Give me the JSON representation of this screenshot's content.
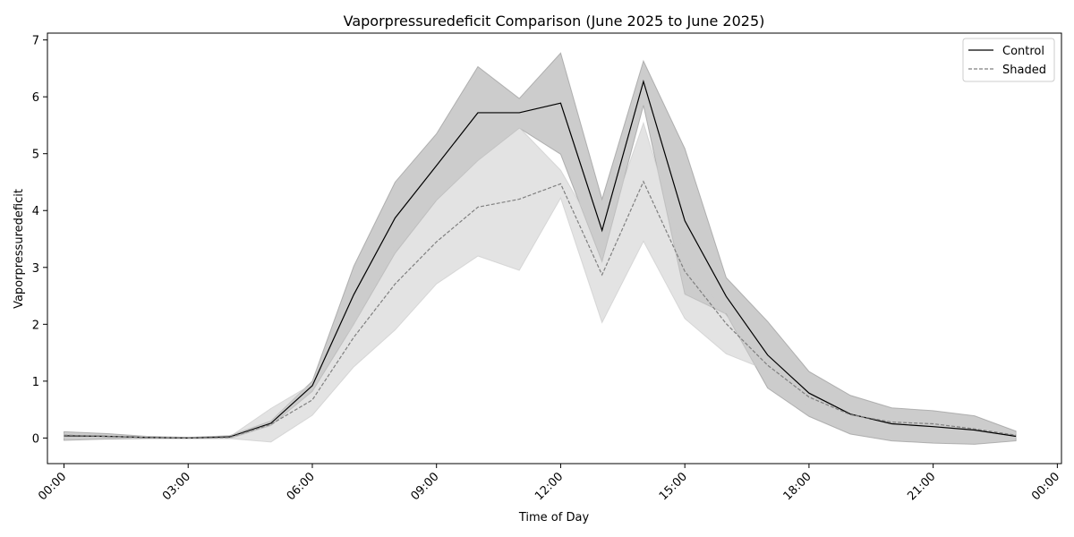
{
  "chart_data": {
    "type": "line",
    "title": "Vaporpressuredeficit Comparison (June 2025 to June 2025)",
    "xlabel": "Time of Day",
    "ylabel": "Vaporpressuredeficit",
    "x_hours": [
      0,
      1,
      2,
      3,
      4,
      5,
      6,
      7,
      8,
      9,
      10,
      11,
      12,
      13,
      14,
      15,
      16,
      17,
      18,
      19,
      20,
      21,
      22,
      23
    ],
    "xlim": [
      -0.4,
      24.1
    ],
    "ylim": [
      -0.45,
      7.12
    ],
    "x_ticks": [
      {
        "hour": 0,
        "label": "00:00"
      },
      {
        "hour": 3,
        "label": "03:00"
      },
      {
        "hour": 6,
        "label": "06:00"
      },
      {
        "hour": 9,
        "label": "09:00"
      },
      {
        "hour": 12,
        "label": "12:00"
      },
      {
        "hour": 15,
        "label": "15:00"
      },
      {
        "hour": 18,
        "label": "18:00"
      },
      {
        "hour": 21,
        "label": "21:00"
      },
      {
        "hour": 24,
        "label": "00:00"
      }
    ],
    "y_ticks": [
      {
        "value": 0,
        "label": "0"
      },
      {
        "value": 1,
        "label": "1"
      },
      {
        "value": 2,
        "label": "2"
      },
      {
        "value": 3,
        "label": "3"
      },
      {
        "value": 4,
        "label": "4"
      },
      {
        "value": 5,
        "label": "5"
      },
      {
        "value": 6,
        "label": "6"
      },
      {
        "value": 7,
        "label": "7"
      }
    ],
    "legend_position": "top-right",
    "grid": false,
    "series": [
      {
        "name": "Control",
        "color": "#000000",
        "line_style": "solid",
        "band_color": "#9a9a9a",
        "band_opacity": 0.5,
        "values": [
          0.04,
          0.03,
          0.01,
          0.0,
          0.02,
          0.26,
          0.92,
          2.52,
          3.87,
          4.79,
          5.72,
          5.72,
          5.89,
          3.65,
          6.27,
          3.82,
          2.49,
          1.46,
          0.79,
          0.42,
          0.25,
          0.2,
          0.14,
          0.03
        ],
        "lower": [
          -0.04,
          -0.02,
          -0.01,
          -0.01,
          -0.01,
          0.22,
          0.82,
          2.0,
          3.25,
          4.18,
          4.88,
          5.45,
          4.99,
          3.1,
          5.85,
          2.53,
          2.18,
          0.88,
          0.38,
          0.07,
          -0.05,
          -0.09,
          -0.11,
          -0.05
        ],
        "upper": [
          0.11,
          0.08,
          0.03,
          0.01,
          0.04,
          0.3,
          1.0,
          3.02,
          4.5,
          5.35,
          6.53,
          5.97,
          6.77,
          4.2,
          6.63,
          5.09,
          2.82,
          2.05,
          1.17,
          0.75,
          0.53,
          0.48,
          0.39,
          0.12
        ]
      },
      {
        "name": "Shaded",
        "color": "#7f7f7f",
        "line_style": "dashed",
        "band_color": "#cccccc",
        "band_opacity": 0.55,
        "values": [
          0.05,
          0.03,
          0.01,
          0.0,
          0.01,
          0.24,
          0.67,
          1.77,
          2.71,
          3.45,
          4.06,
          4.2,
          4.47,
          2.87,
          4.51,
          2.93,
          2.01,
          1.28,
          0.72,
          0.41,
          0.28,
          0.25,
          0.16,
          0.05
        ],
        "lower": [
          0.0,
          0.0,
          0.0,
          0.0,
          -0.01,
          -0.07,
          0.4,
          1.25,
          1.9,
          2.71,
          3.2,
          2.95,
          4.22,
          2.03,
          3.46,
          2.1,
          1.48,
          1.19,
          0.55,
          0.35,
          0.2,
          0.17,
          0.1,
          0.01
        ],
        "upper": [
          0.07,
          0.05,
          0.03,
          0.01,
          0.02,
          0.52,
          0.95,
          2.0,
          3.4,
          4.2,
          4.89,
          5.46,
          4.71,
          3.44,
          5.54,
          3.14,
          2.16,
          1.36,
          0.89,
          0.47,
          0.36,
          0.32,
          0.22,
          0.09
        ]
      }
    ]
  }
}
